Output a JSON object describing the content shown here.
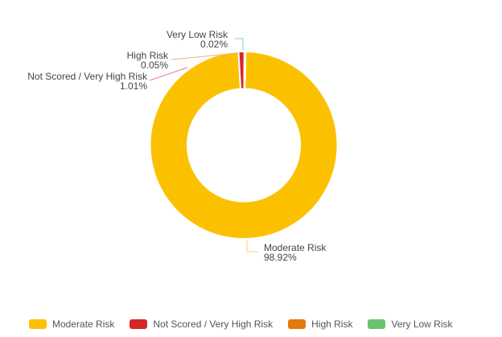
{
  "chart_data": {
    "type": "pie",
    "variant": "donut",
    "title": "",
    "categories": [
      "Moderate Risk",
      "Not Scored / Very High Risk",
      "High Risk",
      "Very Low Risk"
    ],
    "values": [
      98.92,
      1.01,
      0.05,
      0.02
    ],
    "value_labels": [
      "98.92%",
      "1.01%",
      "0.05%",
      "0.02%"
    ],
    "colors": [
      "#fbc100",
      "#d62728",
      "#e5780e",
      "#6cc36e"
    ],
    "legend_position": "bottom"
  },
  "labels": {
    "very_low": {
      "name": "Very Low Risk",
      "pct": "0.02%"
    },
    "high": {
      "name": "High Risk",
      "pct": "0.05%"
    },
    "very_high": {
      "name": "Not Scored / Very High Risk",
      "pct": "1.01%"
    },
    "moderate": {
      "name": "Moderate Risk",
      "pct": "98.92%"
    }
  },
  "legend": [
    {
      "label": "Moderate Risk",
      "color": "#fbc100"
    },
    {
      "label": "Not Scored / Very High Risk",
      "color": "#d62728"
    },
    {
      "label": "High Risk",
      "color": "#e5780e"
    },
    {
      "label": "Very Low Risk",
      "color": "#6cc36e"
    }
  ]
}
